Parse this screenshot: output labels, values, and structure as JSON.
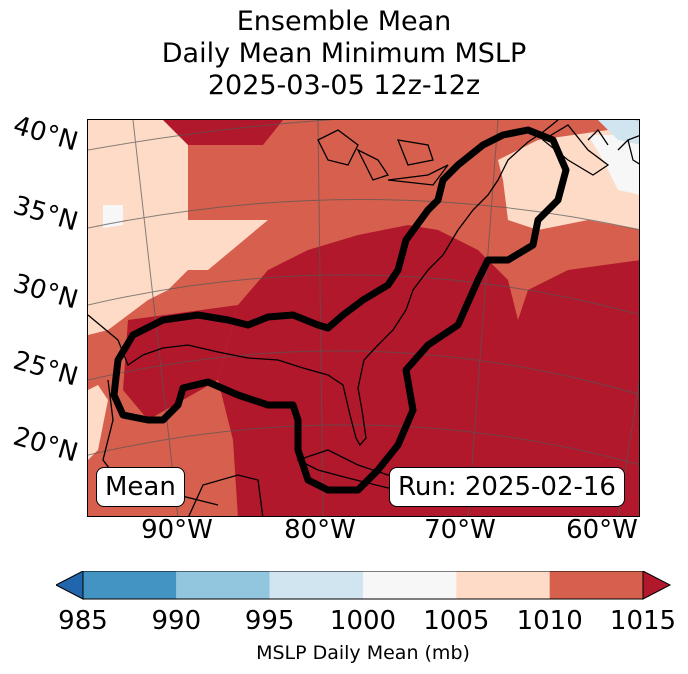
{
  "title": {
    "line1": "Ensemble Mean",
    "line2": "Daily Mean Minimum MSLP",
    "line3": "2025-03-05 12z-12z"
  },
  "map": {
    "lat_labels": [
      "40°N",
      "35°N",
      "30°N",
      "25°N",
      "20°N"
    ],
    "lon_labels": [
      "90°W",
      "80°W",
      "70°W",
      "60°W"
    ],
    "mean_label": "Mean",
    "run_label": "Run: 2025-02-16",
    "colors": {
      "c1000_1005": "#f7f7f7",
      "c1005_1010": "#fddbc7",
      "c1010_1015": "#d6604d",
      "c1015_plus": "#b2182b",
      "c990_995": "#92c5de",
      "c995_1000": "#d1e5f0"
    }
  },
  "colorbar": {
    "ticks": [
      "985",
      "990",
      "995",
      "1000",
      "1005",
      "1010",
      "1015"
    ],
    "colors": [
      "#4393c3",
      "#92c5de",
      "#d1e5f0",
      "#f7f7f7",
      "#fddbc7",
      "#d6604d"
    ],
    "under_color": "#2166ac",
    "over_color": "#b2182b",
    "label": "MSLP Daily Mean (mb)"
  }
}
